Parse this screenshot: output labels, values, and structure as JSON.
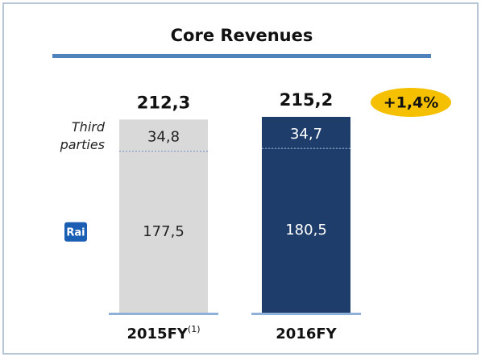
{
  "chart_data": {
    "type": "stacked_bar",
    "title": "Core Revenues",
    "categories": [
      "2015FY",
      "2016FY"
    ],
    "category_notes": [
      "(1)",
      null
    ],
    "colors": [
      "#d9d9d9",
      "#1f3d6b"
    ],
    "series": [
      {
        "name": "Rai",
        "values": [
          177.5,
          180.5
        ],
        "value_labels": [
          "177,5",
          "180,5"
        ]
      },
      {
        "name": "Third parties",
        "values": [
          34.8,
          34.7
        ],
        "value_labels": [
          "34,8",
          "34,7"
        ]
      }
    ],
    "totals": [
      212.3,
      215.2
    ],
    "total_labels": [
      "212,3",
      "215,2"
    ],
    "annotations": [
      "+1,4%"
    ]
  }
}
